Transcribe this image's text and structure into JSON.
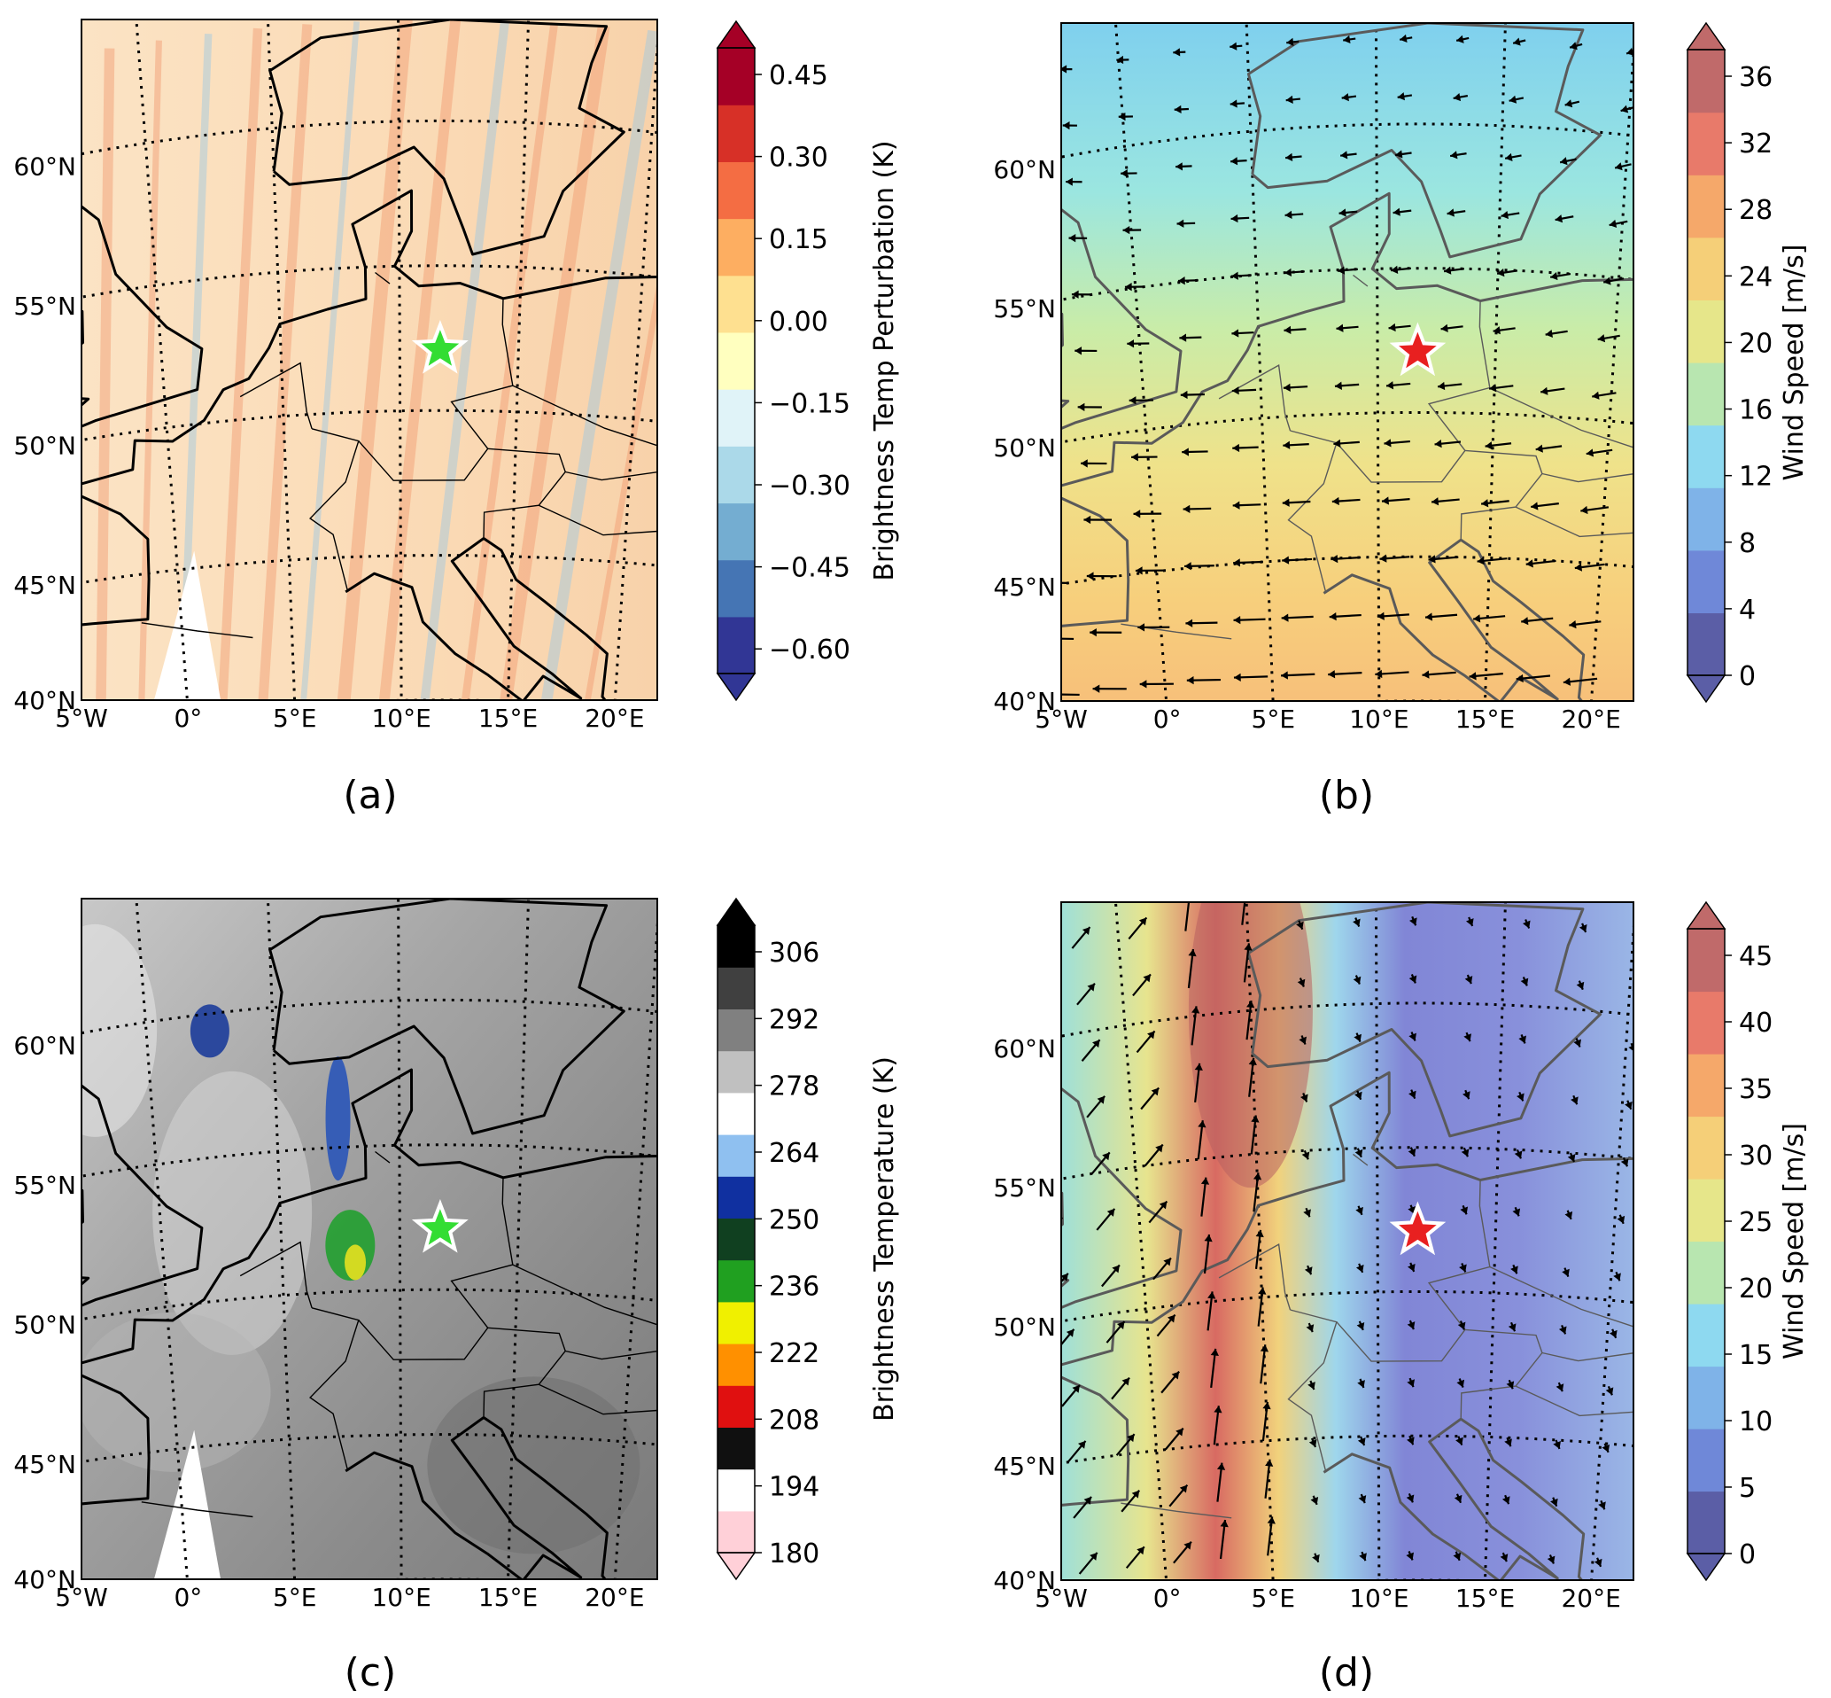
{
  "figure": {
    "panels": [
      {
        "id": "a",
        "label": "(a)",
        "lat_labels": [
          "60°N",
          "55°N",
          "50°N",
          "45°N",
          "40°N"
        ],
        "lon_labels": [
          "5°W",
          "0°",
          "5°E",
          "10°E",
          "15°E",
          "20°E"
        ],
        "colorbar": {
          "title": "Brightness Temp Perturbation (K)",
          "ticks": [
            "0.45",
            "0.30",
            "0.15",
            "0.00",
            "−0.15",
            "−0.30",
            "−0.45",
            "−0.60"
          ],
          "colors": [
            "#313695",
            "#4575b4",
            "#74add1",
            "#abd9e9",
            "#e0f3f8",
            "#ffffbf",
            "#fee090",
            "#fdae61",
            "#f46d43",
            "#d73027",
            "#a50026"
          ],
          "extend": "both"
        },
        "map_style": "perturbation",
        "marker": {
          "shape": "star",
          "color": "#33dd33",
          "lon": 11.7,
          "lat": 52.1
        }
      },
      {
        "id": "b",
        "label": "(b)",
        "lat_labels": [
          "60°N",
          "55°N",
          "50°N",
          "45°N",
          "40°N"
        ],
        "lon_labels": [
          "5°W",
          "0°",
          "5°E",
          "10°E",
          "15°E",
          "20°E"
        ],
        "colorbar": {
          "title": "Wind Speed [m/s]",
          "ticks": [
            "36",
            "32",
            "28",
            "24",
            "20",
            "16",
            "12",
            "8",
            "4",
            "0"
          ],
          "colors": [
            "#5b5ea6",
            "#6f88d8",
            "#7fb3e8",
            "#8ed9f0",
            "#b8e6b0",
            "#e6e68a",
            "#f5cf78",
            "#f5a86a",
            "#e87a6a",
            "#c06a6a"
          ],
          "extend": "both"
        },
        "map_style": "wind_b",
        "marker": {
          "shape": "star",
          "color": "#e82020",
          "lon": 11.7,
          "lat": 52.1
        }
      },
      {
        "id": "c",
        "label": "(c)",
        "lat_labels": [
          "60°N",
          "55°N",
          "50°N",
          "45°N",
          "40°N"
        ],
        "lon_labels": [
          "5°W",
          "0°",
          "5°E",
          "10°E",
          "15°E",
          "20°E"
        ],
        "colorbar": {
          "title": "Brightness Temperature (K)",
          "ticks": [
            "306",
            "292",
            "278",
            "264",
            "250",
            "236",
            "222",
            "208",
            "194",
            "180"
          ],
          "colors": [
            "#ffd0d8",
            "#ffffff",
            "#101010",
            "#e01010",
            "#ff9000",
            "#f0f000",
            "#20a020",
            "#104020",
            "#1030a0",
            "#8fc0f0",
            "#ffffff",
            "#c0c0c0",
            "#808080",
            "#404040",
            "#000000"
          ],
          "extend": "both"
        },
        "map_style": "brightness",
        "marker": {
          "shape": "star",
          "color": "#33dd33",
          "lon": 11.7,
          "lat": 52.1
        }
      },
      {
        "id": "d",
        "label": "(d)",
        "lat_labels": [
          "60°N",
          "55°N",
          "50°N",
          "45°N",
          "40°N"
        ],
        "lon_labels": [
          "5°W",
          "0°",
          "5°E",
          "10°E",
          "15°E",
          "20°E"
        ],
        "colorbar": {
          "title": "Wind Speed [m/s]",
          "ticks": [
            "45",
            "40",
            "35",
            "30",
            "25",
            "20",
            "15",
            "10",
            "5",
            "0"
          ],
          "colors": [
            "#5b5ea6",
            "#6f88d8",
            "#7fb3e8",
            "#8ed9f0",
            "#b8e6b0",
            "#e6e68a",
            "#f5cf78",
            "#f5a86a",
            "#e87a6a",
            "#c06a6a"
          ],
          "extend": "both"
        },
        "map_style": "wind_d",
        "marker": {
          "shape": "star",
          "color": "#e82020",
          "lon": 11.7,
          "lat": 52.1
        }
      }
    ]
  }
}
